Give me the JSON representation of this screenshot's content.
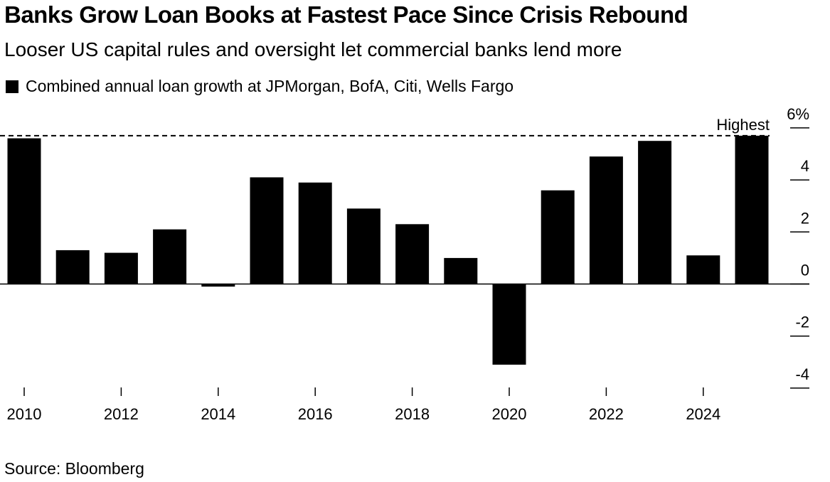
{
  "title": "Banks Grow Loan Books at Fastest Pace Since Crisis Rebound",
  "subtitle": "Looser US capital rules and oversight let commercial banks lend more",
  "source": "Source: Bloomberg",
  "chart_data": {
    "type": "bar",
    "title": "Banks Grow Loan Books at Fastest Pace Since Crisis Rebound",
    "legend": [
      "Combined annual loan growth at JPMorgan, BofA, Citi, Wells Fargo"
    ],
    "legend_position": "top-left",
    "categories": [
      "2010",
      "2011",
      "2012",
      "2013",
      "2014",
      "2015",
      "2016",
      "2017",
      "2018",
      "2019",
      "2020",
      "2021",
      "2022",
      "2023",
      "2024",
      "2025"
    ],
    "values": [
      5.6,
      1.3,
      1.2,
      2.1,
      -0.1,
      4.1,
      3.9,
      2.9,
      2.3,
      1.0,
      -3.1,
      3.6,
      4.9,
      5.5,
      1.1,
      5.7
    ],
    "x_tick_labels": [
      "2010",
      "2012",
      "2014",
      "2016",
      "2018",
      "2020",
      "2022",
      "2024"
    ],
    "y_tick_labels": [
      "6%",
      "4",
      "2",
      "0",
      "-2",
      "-4"
    ],
    "y_ticks": [
      6,
      4,
      2,
      0,
      -2,
      -4
    ],
    "ylim": [
      -4,
      6
    ],
    "reference_line": {
      "label": "Highest",
      "value": 5.7
    },
    "xlabel": "",
    "ylabel": "",
    "grid": false,
    "color": "#000000"
  }
}
